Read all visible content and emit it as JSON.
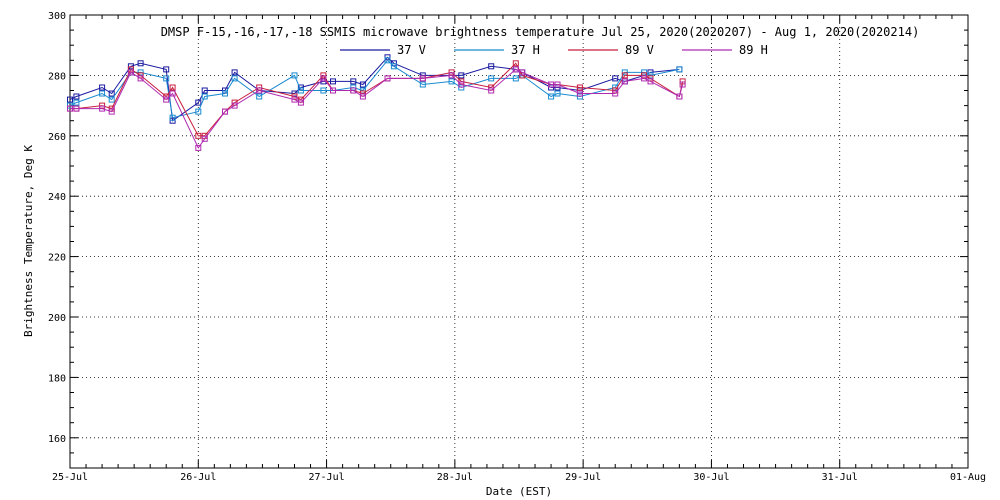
{
  "chart_data": {
    "type": "line",
    "title": "DMSP F-15,-16,-17,-18 SSMIS microwave brightness temperature Jul 25, 2020(2020207) - Aug  1, 2020(2020214)",
    "xlabel": "Date (EST)",
    "ylabel": "Brightness Temperature, Deg K",
    "xlim": [
      "2020-07-25T00:00",
      "2020-08-01T00:00"
    ],
    "ylim": [
      150,
      300
    ],
    "y_ticks": [
      160,
      180,
      200,
      220,
      240,
      260,
      280,
      300
    ],
    "x_ticks": [
      {
        "value": "2020-07-25T00:00",
        "label": "25-Jul"
      },
      {
        "value": "2020-07-26T00:00",
        "label": "26-Jul"
      },
      {
        "value": "2020-07-27T00:00",
        "label": "27-Jul"
      },
      {
        "value": "2020-07-28T00:00",
        "label": "28-Jul"
      },
      {
        "value": "2020-07-29T00:00",
        "label": "29-Jul"
      },
      {
        "value": "2020-07-30T00:00",
        "label": "30-Jul"
      },
      {
        "value": "2020-07-31T00:00",
        "label": "31-Jul"
      },
      {
        "value": "2020-08-01T00:00",
        "label": "01-Aug"
      }
    ],
    "grid": true,
    "legend_position": "top-center",
    "series": [
      {
        "name": "37 V",
        "color": "#1a1aa0",
        "x": [
          "2020-07-25T00:00",
          "2020-07-25T01:12",
          "2020-07-25T06:00",
          "2020-07-25T07:48",
          "2020-07-25T11:24",
          "2020-07-25T13:12",
          "2020-07-25T18:00",
          "2020-07-25T19:12",
          "2020-07-26T00:00",
          "2020-07-26T01:12",
          "2020-07-26T05:00",
          "2020-07-26T06:48",
          "2020-07-26T11:24",
          "2020-07-26T18:00",
          "2020-07-26T19:12",
          "2020-07-26T23:24",
          "2020-07-27T01:12",
          "2020-07-27T05:00",
          "2020-07-27T06:48",
          "2020-07-27T11:24",
          "2020-07-27T12:36",
          "2020-07-27T18:00",
          "2020-07-27T23:24",
          "2020-07-28T01:12",
          "2020-07-28T06:48",
          "2020-07-28T11:24",
          "2020-07-28T12:36",
          "2020-07-28T18:00",
          "2020-07-28T19:12",
          "2020-07-28T23:24",
          "2020-07-29T06:00",
          "2020-07-29T07:48",
          "2020-07-29T11:24",
          "2020-07-29T12:36",
          "2020-07-29T18:00",
          "2020-07-29T18:36"
        ],
        "y": [
          272,
          273,
          276,
          274,
          283,
          284,
          282,
          265,
          271,
          275,
          275,
          281,
          275,
          274,
          276,
          278,
          278,
          278,
          277,
          286,
          284,
          280,
          280,
          280,
          283,
          282,
          281,
          276,
          276,
          275,
          279,
          278,
          280,
          281,
          282,
          null
        ]
      },
      {
        "name": "37 H",
        "color": "#1a8ad0",
        "x": [
          "2020-07-25T00:00",
          "2020-07-25T01:12",
          "2020-07-25T06:00",
          "2020-07-25T07:48",
          "2020-07-25T11:24",
          "2020-07-25T13:12",
          "2020-07-25T18:00",
          "2020-07-25T19:12",
          "2020-07-26T00:00",
          "2020-07-26T01:12",
          "2020-07-26T05:00",
          "2020-07-26T06:48",
          "2020-07-26T11:24",
          "2020-07-26T18:00",
          "2020-07-26T19:12",
          "2020-07-26T23:24",
          "2020-07-27T01:12",
          "2020-07-27T05:00",
          "2020-07-27T06:48",
          "2020-07-27T11:24",
          "2020-07-27T12:36",
          "2020-07-27T18:00",
          "2020-07-27T23:24",
          "2020-07-28T01:12",
          "2020-07-28T06:48",
          "2020-07-28T11:24",
          "2020-07-28T12:36",
          "2020-07-28T18:00",
          "2020-07-28T19:12",
          "2020-07-28T23:24",
          "2020-07-29T06:00",
          "2020-07-29T07:48",
          "2020-07-29T11:24",
          "2020-07-29T12:36",
          "2020-07-29T18:00",
          "2020-07-29T18:36"
        ],
        "y": [
          270,
          271,
          274,
          272,
          281,
          281,
          279,
          266,
          268,
          273,
          274,
          279,
          273,
          280,
          275,
          275,
          275,
          276,
          275,
          285,
          283,
          277,
          278,
          276,
          279,
          279,
          280,
          273,
          274,
          273,
          276,
          281,
          281,
          280,
          282,
          null
        ]
      },
      {
        "name": "89 V",
        "color": "#c81e3c",
        "x": [
          "2020-07-25T00:00",
          "2020-07-25T01:12",
          "2020-07-25T06:00",
          "2020-07-25T07:48",
          "2020-07-25T11:24",
          "2020-07-25T13:12",
          "2020-07-25T18:00",
          "2020-07-25T19:12",
          "2020-07-26T00:00",
          "2020-07-26T01:12",
          "2020-07-26T05:00",
          "2020-07-26T06:48",
          "2020-07-26T11:24",
          "2020-07-26T18:00",
          "2020-07-26T19:12",
          "2020-07-26T23:24",
          "2020-07-27T01:12",
          "2020-07-27T05:00",
          "2020-07-27T06:48",
          "2020-07-27T11:24",
          "2020-07-27T18:00",
          "2020-07-27T23:24",
          "2020-07-28T01:12",
          "2020-07-28T06:48",
          "2020-07-28T11:24",
          "2020-07-28T12:36",
          "2020-07-28T18:00",
          "2020-07-28T19:12",
          "2020-07-28T23:24",
          "2020-07-29T06:00",
          "2020-07-29T07:48",
          "2020-07-29T11:24",
          "2020-07-29T12:36",
          "2020-07-29T18:00",
          "2020-07-29T18:36"
        ],
        "y": [
          269,
          269,
          270,
          269,
          282,
          280,
          273,
          276,
          260,
          260,
          268,
          271,
          276,
          273,
          272,
          280,
          275,
          275,
          274,
          279,
          279,
          281,
          278,
          276,
          284,
          280,
          277,
          277,
          276,
          275,
          280,
          280,
          279,
          273,
          278
        ]
      },
      {
        "name": "89 H",
        "color": "#b02ab0",
        "x": [
          "2020-07-25T00:00",
          "2020-07-25T01:12",
          "2020-07-25T06:00",
          "2020-07-25T07:48",
          "2020-07-25T11:24",
          "2020-07-25T13:12",
          "2020-07-25T18:00",
          "2020-07-25T19:12",
          "2020-07-26T00:00",
          "2020-07-26T01:12",
          "2020-07-26T05:00",
          "2020-07-26T06:48",
          "2020-07-26T11:24",
          "2020-07-26T18:00",
          "2020-07-26T19:12",
          "2020-07-26T23:24",
          "2020-07-27T01:12",
          "2020-07-27T05:00",
          "2020-07-27T06:48",
          "2020-07-27T11:24",
          "2020-07-27T18:00",
          "2020-07-27T23:24",
          "2020-07-28T01:12",
          "2020-07-28T06:48",
          "2020-07-28T11:24",
          "2020-07-28T12:36",
          "2020-07-28T18:00",
          "2020-07-28T19:12",
          "2020-07-28T23:24",
          "2020-07-29T06:00",
          "2020-07-29T07:48",
          "2020-07-29T11:24",
          "2020-07-29T12:36",
          "2020-07-29T18:00",
          "2020-07-29T18:36"
        ],
        "y": [
          269,
          269,
          269,
          268,
          281,
          279,
          272,
          274,
          256,
          259,
          268,
          270,
          275,
          272,
          271,
          279,
          275,
          275,
          273,
          279,
          279,
          280,
          277,
          275,
          282,
          281,
          277,
          277,
          274,
          274,
          278,
          279,
          278,
          273,
          277
        ]
      }
    ]
  }
}
